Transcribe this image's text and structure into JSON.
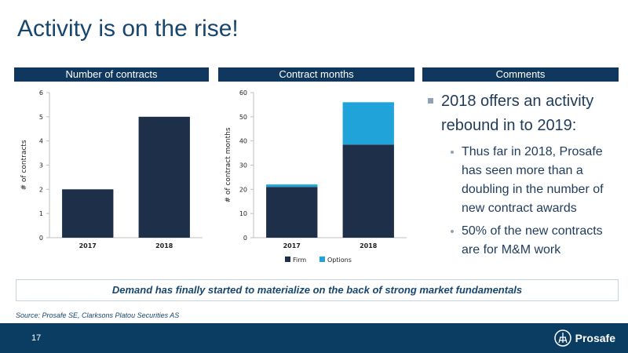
{
  "slide": {
    "title": "Activity is on the rise!",
    "page_number": "17",
    "brand": "Prosafe"
  },
  "panels": {
    "contracts_header": "Number of contracts",
    "months_header": "Contract months",
    "comments_header": "Comments"
  },
  "comments": {
    "main": "2018 offers an activity rebound in to 2019:",
    "subs": [
      "Thus far in 2018, Prosafe has seen more than a doubling in the number of new contract awards",
      "50% of the new contracts are for M&M work"
    ]
  },
  "demand_note": "Demand has finally started to materialize on the back of strong market fundamentals",
  "source": "Source: Prosafe SE, Clarksons Platou Securities AS",
  "colors": {
    "navy": "#1e2f4a",
    "options": "#1fa3d8",
    "header": "#10385e",
    "footer": "#0b3d63"
  },
  "chart_data": [
    {
      "type": "bar",
      "title": "Number of contracts",
      "categories": [
        "2017",
        "2018"
      ],
      "values": [
        2,
        5
      ],
      "xlabel": "",
      "ylabel": "# of contracts",
      "ylim": [
        0,
        6
      ],
      "yticks": [
        0,
        1,
        2,
        3,
        4,
        5,
        6
      ],
      "grid": false
    },
    {
      "type": "bar",
      "stacked": true,
      "title": "Contract months",
      "categories": [
        "2017",
        "2018"
      ],
      "series": [
        {
          "name": "Firm",
          "values": [
            21,
            38.5
          ]
        },
        {
          "name": "Options",
          "values": [
            1,
            17.5
          ]
        }
      ],
      "xlabel": "",
      "ylabel": "# of contract months",
      "ylim": [
        0,
        60
      ],
      "yticks": [
        0,
        10,
        20,
        30,
        40,
        50,
        60
      ],
      "legend": "bottom",
      "grid": false
    }
  ]
}
